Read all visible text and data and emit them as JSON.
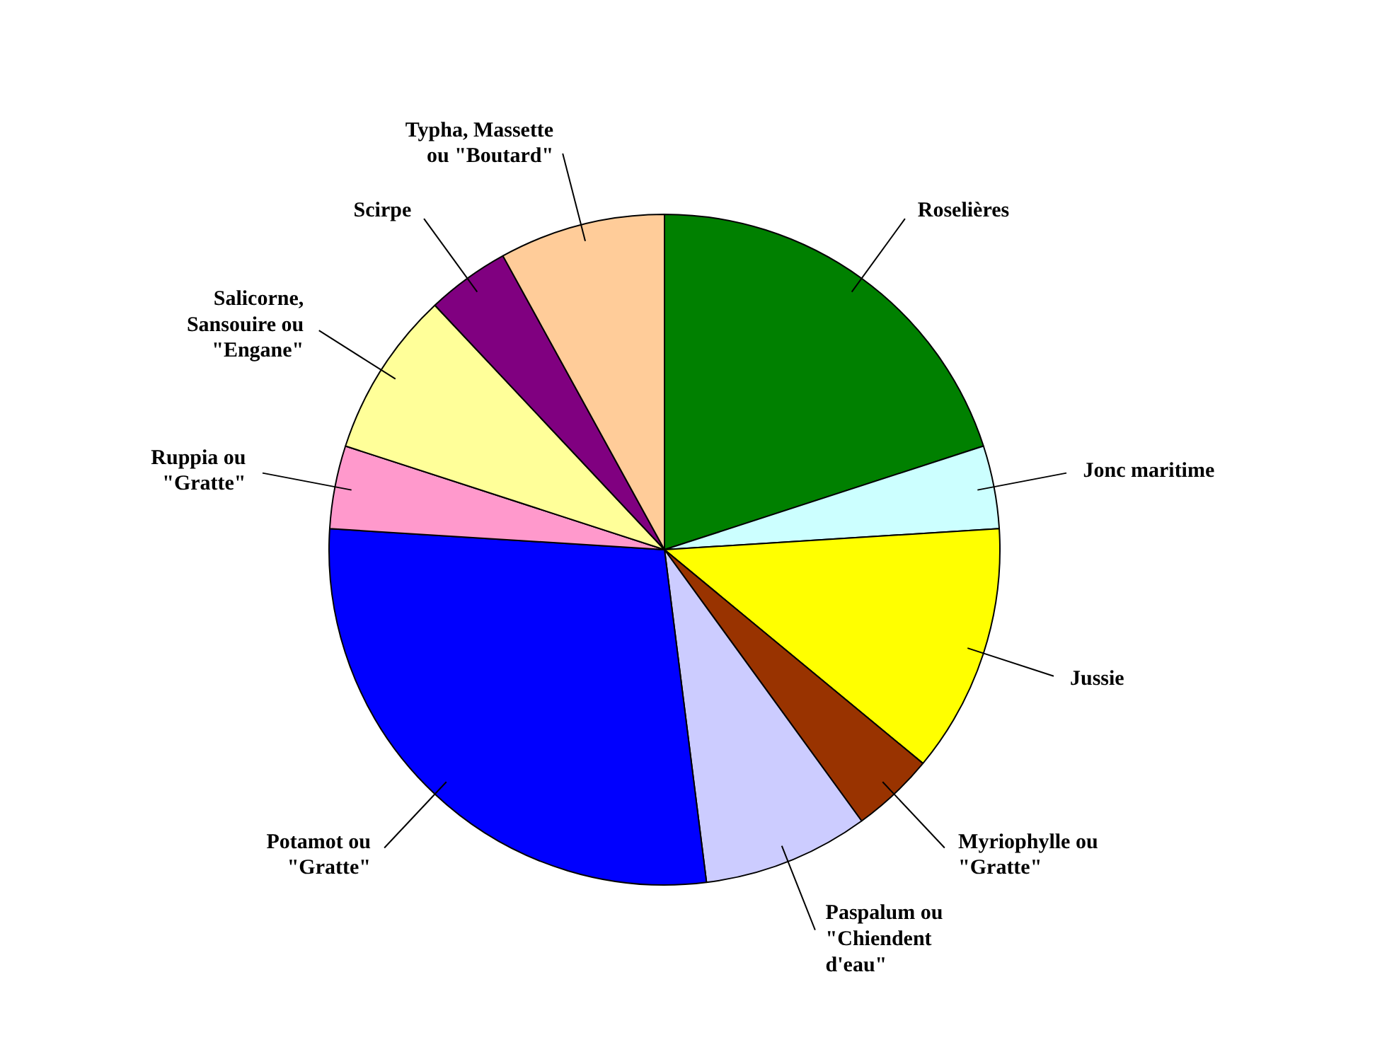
{
  "chart_data": {
    "type": "pie",
    "categories": [
      "Roselières",
      "Jonc maritime",
      "Jussie",
      "Myriophylle ou \"Gratte\"",
      "Paspalum ou \"Chiendent d'eau\"",
      "Potamot ou \"Gratte\"",
      "Ruppia ou \"Gratte\"",
      "Salicorne, Sansouire ou \"Engane\"",
      "Scirpe",
      "Typha, Massette ou \"Boutard\""
    ],
    "values": [
      20,
      4,
      12,
      4,
      8,
      28,
      4,
      8,
      4,
      8
    ],
    "colors": [
      "#008000",
      "#ccffff",
      "#ffff00",
      "#993300",
      "#ccccff",
      "#0000ff",
      "#ff99cc",
      "#ffff99",
      "#800080",
      "#ffcc99"
    ]
  }
}
